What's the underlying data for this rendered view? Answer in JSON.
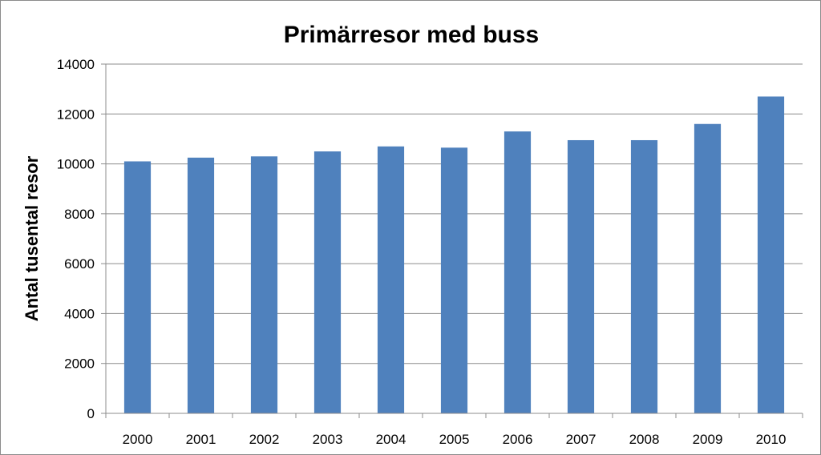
{
  "chart_data": {
    "type": "bar",
    "title": "Primärresor med buss",
    "xlabel": "",
    "ylabel": "Antal tusental resor",
    "categories": [
      "2000",
      "2001",
      "2002",
      "2003",
      "2004",
      "2005",
      "2006",
      "2007",
      "2008",
      "2009",
      "2010"
    ],
    "series": [
      {
        "values": [
          10100,
          10250,
          10300,
          10500,
          10700,
          10650,
          11300,
          10950,
          10950,
          11600,
          12700
        ],
        "color": "#4f81bd"
      }
    ],
    "ylim": [
      0,
      14000
    ],
    "yticks": [
      0,
      2000,
      4000,
      6000,
      8000,
      10000,
      12000,
      14000
    ],
    "grid": true,
    "legend": "none"
  }
}
